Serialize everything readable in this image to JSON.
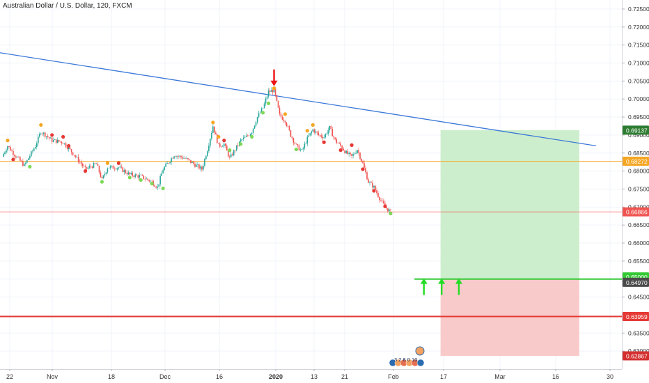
{
  "header": {
    "symbol_title": "Australian Dollar / U.S. Dollar, 120, FXCM"
  },
  "colors": {
    "trendline": "#3c78d8",
    "horizontal_orange": "#f5a623",
    "current_price_line": "#ef5350",
    "stop_line": "#e53935",
    "entry_line": "#34c934",
    "profit_zone": "#c8ecc8",
    "loss_zone": "#f8c4c4",
    "candle_up": "#26a69a",
    "candle_down": "#ef5350",
    "dot_orange": "#f5a623",
    "dot_red": "#e53935",
    "dot_green": "#7ed957",
    "arrow_up": "#22dd22",
    "arrow_down": "#ee1111",
    "grid": "#f0f3fa"
  },
  "chart_data": {
    "type": "candlestick",
    "title": "Australian Dollar / U.S. Dollar, 120, FXCM",
    "y_axis": {
      "ylim": [
        0.625,
        0.7275
      ],
      "ticks": [
        "0.72500",
        "0.72000",
        "0.71500",
        "0.71000",
        "0.70500",
        "0.70000",
        "0.69500",
        "0.69000",
        "0.68500",
        "0.68000",
        "0.67500",
        "0.67000",
        "0.66500",
        "0.66000",
        "0.65500",
        "0.65000",
        "0.64500",
        "0.64000",
        "0.63500",
        "0.63000"
      ]
    },
    "x_axis": {
      "ticks": [
        "22",
        "Nov",
        "18",
        "Dec",
        "16",
        "2020",
        "13",
        "21",
        "Feb",
        "17",
        "Mar",
        "16",
        "30"
      ]
    },
    "price_path": [
      {
        "t": 0,
        "p": 0.684
      },
      {
        "t": 1,
        "p": 0.687
      },
      {
        "t": 2,
        "p": 0.685
      },
      {
        "t": 4,
        "p": 0.6815
      },
      {
        "t": 6,
        "p": 0.687
      },
      {
        "t": 7,
        "p": 0.691
      },
      {
        "t": 9,
        "p": 0.6885
      },
      {
        "t": 11,
        "p": 0.688
      },
      {
        "t": 13,
        "p": 0.6845
      },
      {
        "t": 15,
        "p": 0.6805
      },
      {
        "t": 17,
        "p": 0.682
      },
      {
        "t": 18,
        "p": 0.6775
      },
      {
        "t": 19,
        "p": 0.681
      },
      {
        "t": 21,
        "p": 0.681
      },
      {
        "t": 23,
        "p": 0.679
      },
      {
        "t": 25,
        "p": 0.6785
      },
      {
        "t": 27,
        "p": 0.677
      },
      {
        "t": 28,
        "p": 0.6755
      },
      {
        "t": 29,
        "p": 0.6805
      },
      {
        "t": 31,
        "p": 0.6845
      },
      {
        "t": 33,
        "p": 0.6835
      },
      {
        "t": 35,
        "p": 0.6815
      },
      {
        "t": 36,
        "p": 0.6805
      },
      {
        "t": 37,
        "p": 0.686
      },
      {
        "t": 38,
        "p": 0.6925
      },
      {
        "t": 39,
        "p": 0.687
      },
      {
        "t": 40,
        "p": 0.6875
      },
      {
        "t": 41,
        "p": 0.6835
      },
      {
        "t": 42,
        "p": 0.686
      },
      {
        "t": 43,
        "p": 0.6885
      },
      {
        "t": 44,
        "p": 0.6895
      },
      {
        "t": 45,
        "p": 0.691
      },
      {
        "t": 46,
        "p": 0.695
      },
      {
        "t": 47,
        "p": 0.6975
      },
      {
        "t": 48,
        "p": 0.702
      },
      {
        "t": 49,
        "p": 0.7025
      },
      {
        "t": 50,
        "p": 0.6955
      },
      {
        "t": 51,
        "p": 0.694
      },
      {
        "t": 52,
        "p": 0.69
      },
      {
        "t": 53,
        "p": 0.687
      },
      {
        "t": 54,
        "p": 0.6855
      },
      {
        "t": 55,
        "p": 0.689
      },
      {
        "t": 56,
        "p": 0.6915
      },
      {
        "t": 57,
        "p": 0.69
      },
      {
        "t": 58,
        "p": 0.6895
      },
      {
        "t": 59,
        "p": 0.692
      },
      {
        "t": 60,
        "p": 0.6885
      },
      {
        "t": 61,
        "p": 0.687
      },
      {
        "t": 62,
        "p": 0.685
      },
      {
        "t": 63,
        "p": 0.684
      },
      {
        "t": 64,
        "p": 0.686
      },
      {
        "t": 65,
        "p": 0.682
      },
      {
        "t": 66,
        "p": 0.677
      },
      {
        "t": 67,
        "p": 0.6755
      },
      {
        "t": 68,
        "p": 0.6725
      },
      {
        "t": 69,
        "p": 0.67
      },
      {
        "t": 70,
        "p": 0.6687
      }
    ],
    "signal_dots": [
      {
        "t": 1,
        "p": 0.6885,
        "c": "orange"
      },
      {
        "t": 2,
        "p": 0.6832,
        "c": "red"
      },
      {
        "t": 5,
        "p": 0.6812,
        "c": "green"
      },
      {
        "t": 7,
        "p": 0.6928,
        "c": "orange"
      },
      {
        "t": 9,
        "p": 0.69,
        "c": "red"
      },
      {
        "t": 11,
        "p": 0.6895,
        "c": "red"
      },
      {
        "t": 12,
        "p": 0.687,
        "c": "red"
      },
      {
        "t": 15,
        "p": 0.68,
        "c": "red"
      },
      {
        "t": 18,
        "p": 0.677,
        "c": "green"
      },
      {
        "t": 19,
        "p": 0.6822,
        "c": "orange"
      },
      {
        "t": 21,
        "p": 0.6822,
        "c": "red"
      },
      {
        "t": 23,
        "p": 0.6782,
        "c": "green"
      },
      {
        "t": 25,
        "p": 0.6775,
        "c": "green"
      },
      {
        "t": 27,
        "p": 0.6765,
        "c": "green"
      },
      {
        "t": 29,
        "p": 0.6752,
        "c": "green"
      },
      {
        "t": 38,
        "p": 0.6935,
        "c": "orange"
      },
      {
        "t": 39,
        "p": 0.6895,
        "c": "orange"
      },
      {
        "t": 40,
        "p": 0.6885,
        "c": "red"
      },
      {
        "t": 41,
        "p": 0.6858,
        "c": "green"
      },
      {
        "t": 43,
        "p": 0.6875,
        "c": "green"
      },
      {
        "t": 45,
        "p": 0.6895,
        "c": "green"
      },
      {
        "t": 47,
        "p": 0.6962,
        "c": "green"
      },
      {
        "t": 48,
        "p": 0.6988,
        "c": "green"
      },
      {
        "t": 49,
        "p": 0.703,
        "c": "orange"
      },
      {
        "t": 51,
        "p": 0.6958,
        "c": "orange"
      },
      {
        "t": 53,
        "p": 0.686,
        "c": "green"
      },
      {
        "t": 55,
        "p": 0.6912,
        "c": "orange"
      },
      {
        "t": 56,
        "p": 0.6928,
        "c": "orange"
      },
      {
        "t": 58,
        "p": 0.688,
        "c": "red"
      },
      {
        "t": 61,
        "p": 0.6858,
        "c": "red"
      },
      {
        "t": 63,
        "p": 0.6872,
        "c": "red"
      },
      {
        "t": 65,
        "p": 0.6805,
        "c": "red"
      },
      {
        "t": 67,
        "p": 0.6745,
        "c": "red"
      },
      {
        "t": 69,
        "p": 0.6702,
        "c": "red"
      },
      {
        "t": 70,
        "p": 0.6682,
        "c": "green"
      }
    ],
    "trendline": {
      "start": {
        "t": -1,
        "p": 0.713
      },
      "end": {
        "t": 107,
        "p": 0.687
      }
    },
    "horizontal_lines": [
      {
        "name": "orange-level",
        "value": 0.68272,
        "label": "0.68272"
      },
      {
        "name": "current-price",
        "value": 0.66866,
        "label": "0.66866"
      },
      {
        "name": "stop-level",
        "value": 0.63959,
        "label": "0.63959"
      }
    ],
    "position": {
      "type": "long",
      "start_t": 79,
      "end_t": 104,
      "entry": 0.65,
      "entry_label": "0.65000",
      "target": 0.69137,
      "target_label": "0.69137",
      "stop": 0.62867,
      "stop_label": "0.62867",
      "extra_label": "0.64970",
      "extra_value": 0.6497
    },
    "arrows": [
      {
        "dir": "down",
        "t": 49,
        "p": 0.7055
      },
      {
        "dir": "up",
        "t": 76,
        "p": 0.6475
      },
      {
        "dir": "up",
        "t": 79.2,
        "p": 0.6475
      },
      {
        "dir": "up",
        "t": 82.3,
        "p": 0.6475
      }
    ]
  },
  "bottom_badge": {
    "text": "3 2 8 0 10"
  }
}
